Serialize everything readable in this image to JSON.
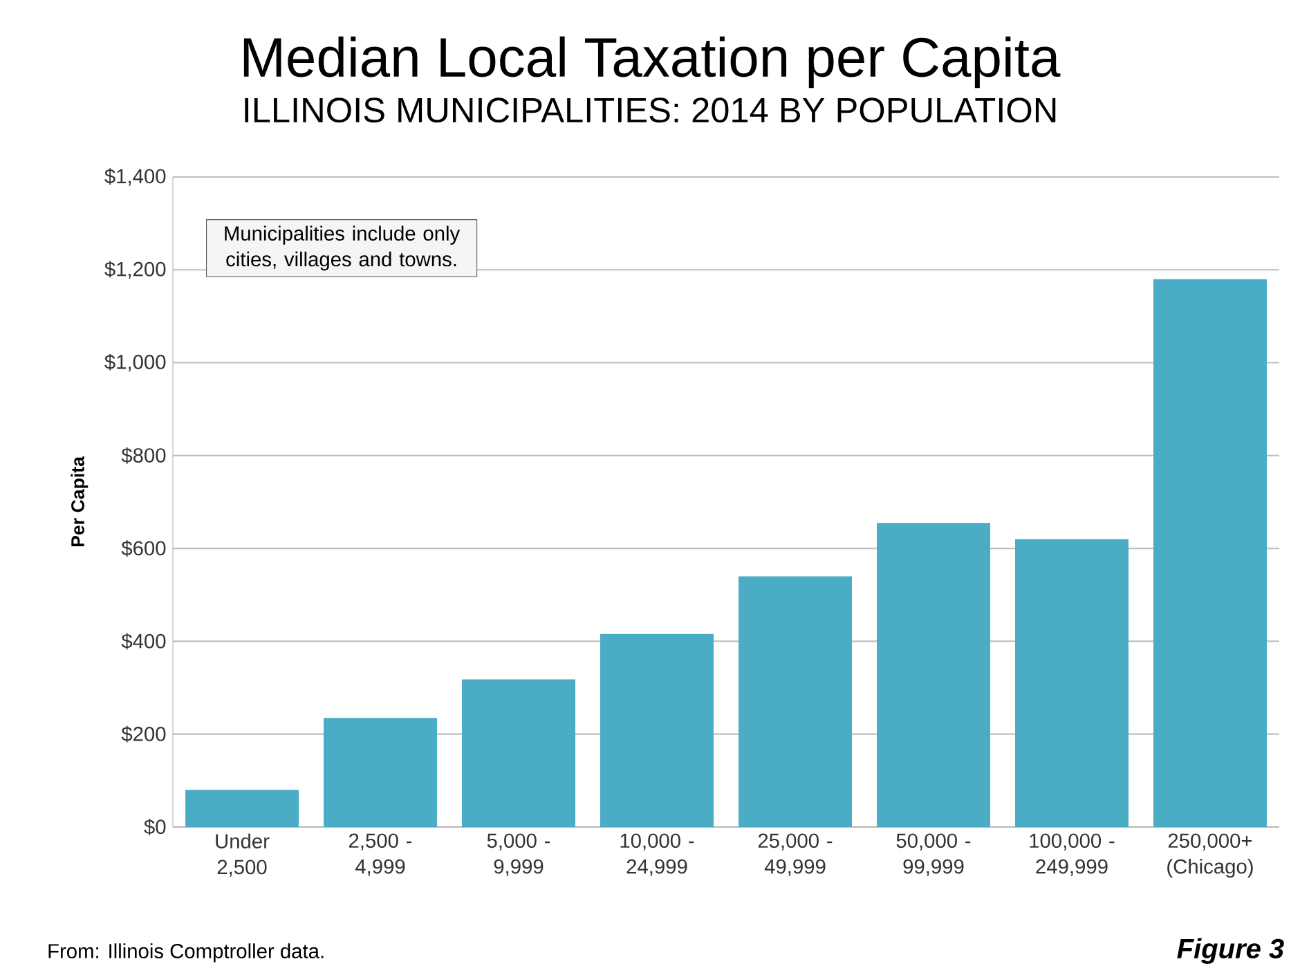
{
  "chart_data": {
    "type": "bar",
    "title": "Median Local Taxation per Capita",
    "subtitle": "ILLINOIS MUNICIPALITIES: 2014 BY POPULATION",
    "ylabel": "Per Capita",
    "categories": [
      "Under 2,500",
      "2,500 - 4,999",
      "5,000 - 9,999",
      "10,000 - 24,999",
      "25,000 - 49,999",
      "50,000 - 99,999",
      "100,000 - 249,999",
      "250,000+ (Chicago)"
    ],
    "values": [
      80,
      235,
      318,
      416,
      540,
      655,
      620,
      1180
    ],
    "color": "#4bacc6",
    "ylim": [
      0,
      1400
    ],
    "yticks": [
      {
        "value": 0,
        "label": "$0"
      },
      {
        "value": 200,
        "label": "$200"
      },
      {
        "value": 400,
        "label": "$400"
      },
      {
        "value": 600,
        "label": "$600"
      },
      {
        "value": 800,
        "label": "$800"
      },
      {
        "value": 1000,
        "label": "$1,000"
      },
      {
        "value": 1200,
        "label": "$1,200"
      },
      {
        "value": 1400,
        "label": "$1,400"
      }
    ],
    "grid": "y",
    "annotations": [
      "Municipalities include only cities, villages and towns.",
      "From: Illinois Comptroller data.",
      "**Figure 3**"
    ]
  }
}
